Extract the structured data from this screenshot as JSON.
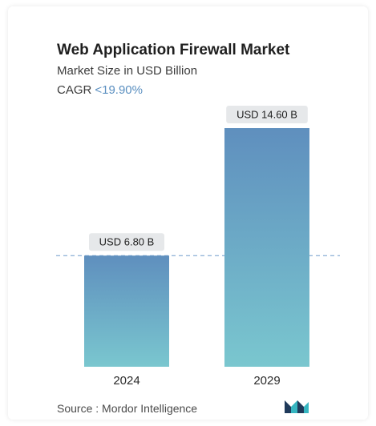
{
  "header": {
    "title": "Web Application Firewall Market",
    "subtitle": "Market Size in USD Billion",
    "cagr_label": "CAGR",
    "cagr_value": "<19.90%"
  },
  "chart_data": {
    "type": "bar",
    "categories": [
      "2024",
      "2029"
    ],
    "values": [
      6.8,
      14.6
    ],
    "data_labels": [
      "USD 6.80 B",
      "USD 14.60 B"
    ],
    "title": "Web Application Firewall Market",
    "subtitle": "Market Size in USD Billion",
    "xlabel": "",
    "ylabel": "",
    "ylim": [
      0,
      14.6
    ],
    "grid": false,
    "reference_line_at": 6.8
  },
  "footer": {
    "source_text": "Source :  Mordor Intelligence"
  },
  "colors": {
    "bar_top": "#5f8fbe",
    "bar_bottom": "#7ac7cf",
    "label_bg": "#e6e8ea",
    "dashed_line": "#6f9ccc",
    "logo_dark": "#1f3a5a",
    "logo_teal": "#36b5c0"
  },
  "icons": {
    "logo": "mordor-intelligence-logo"
  }
}
